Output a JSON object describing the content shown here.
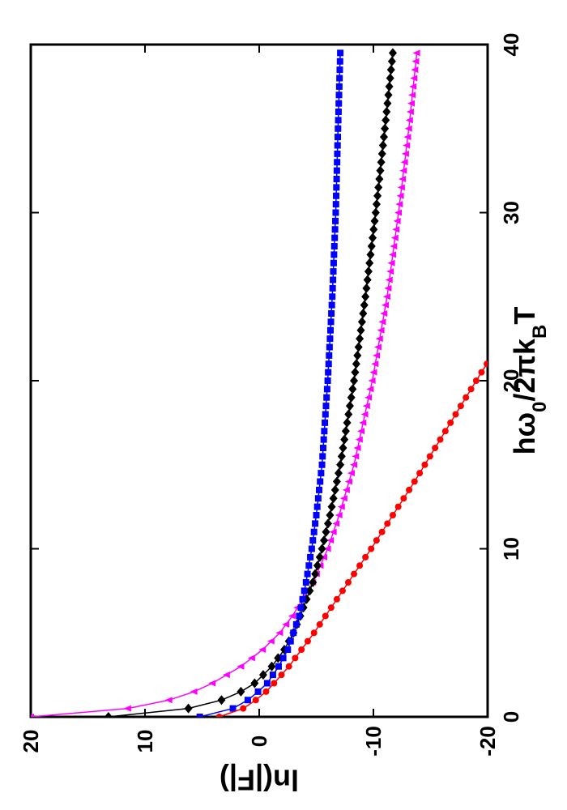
{
  "chart_data": {
    "type": "line",
    "title": "",
    "xlabel": {
      "parts": [
        {
          "text": "h",
          "style": "normal"
        },
        {
          "text": "ω",
          "style": "normal"
        },
        {
          "text": "0",
          "style": "sub"
        },
        {
          "text": "/2",
          "style": "normal"
        },
        {
          "text": "π",
          "style": "normal"
        },
        {
          "text": "k",
          "style": "normal"
        },
        {
          "text": "B",
          "style": "sub"
        },
        {
          "text": "T",
          "style": "normal"
        }
      ]
    },
    "ylabel": "ln(|F|)",
    "xlim": [
      0,
      40
    ],
    "ylim": [
      -20,
      20
    ],
    "x_ticks": [
      "0",
      "10",
      "20",
      "30",
      "40"
    ],
    "y_ticks": [
      "-20",
      "-10",
      "0",
      "10",
      "20"
    ],
    "orientation": "rotated-90-ccw",
    "grid": false,
    "legend": "none",
    "series": [
      {
        "color": "#ff00ff",
        "marker": "triangle",
        "points": [
          [
            0,
            20
          ],
          [
            0.5,
            11.5
          ],
          [
            1,
            7.9
          ],
          [
            1.5,
            5.7
          ],
          [
            2,
            4.1
          ],
          [
            3,
            1.6
          ],
          [
            4,
            -0.3
          ],
          [
            5,
            -1.8
          ],
          [
            6,
            -2.9
          ],
          [
            8,
            -4.7
          ],
          [
            10,
            -6.0
          ],
          [
            12,
            -7.0
          ],
          [
            15,
            -8.3
          ],
          [
            20,
            -9.9
          ],
          [
            25,
            -11.2
          ],
          [
            30,
            -12.2
          ],
          [
            35,
            -13.1
          ],
          [
            39.5,
            -13.8
          ]
        ]
      },
      {
        "color": "#000000",
        "marker": "diamond",
        "points": [
          [
            0,
            13.2
          ],
          [
            0.5,
            6.2
          ],
          [
            1,
            3.3
          ],
          [
            1.5,
            1.6
          ],
          [
            2,
            0.4
          ],
          [
            3,
            -1.1
          ],
          [
            4,
            -2.2
          ],
          [
            5,
            -3.0
          ],
          [
            6,
            -3.6
          ],
          [
            8,
            -4.7
          ],
          [
            10,
            -5.5
          ],
          [
            12,
            -6.2
          ],
          [
            15,
            -7.1
          ],
          [
            20,
            -8.3
          ],
          [
            25,
            -9.3
          ],
          [
            30,
            -10.2
          ],
          [
            35,
            -11.0
          ],
          [
            39.5,
            -11.7
          ]
        ]
      },
      {
        "color": "#0000ff",
        "marker": "square",
        "points": [
          [
            0,
            5.2
          ],
          [
            0.5,
            2.3
          ],
          [
            1,
            1.0
          ],
          [
            1.5,
            0.1
          ],
          [
            2,
            -0.7
          ],
          [
            3,
            -1.7
          ],
          [
            4,
            -2.5
          ],
          [
            5,
            -3.0
          ],
          [
            6,
            -3.5
          ],
          [
            7,
            -3.8
          ],
          [
            8,
            -4.1
          ],
          [
            10,
            -4.6
          ],
          [
            12,
            -5.0
          ],
          [
            15,
            -5.5
          ],
          [
            20,
            -6.0
          ],
          [
            25,
            -6.4
          ],
          [
            30,
            -6.7
          ],
          [
            35,
            -6.9
          ],
          [
            39.5,
            -7.1
          ]
        ]
      },
      {
        "color": "#ff0000",
        "marker": "circle",
        "points": [
          [
            0,
            3.5
          ],
          [
            0.5,
            1.4
          ],
          [
            1,
            0.3
          ],
          [
            1.5,
            -0.6
          ],
          [
            2,
            -1.3
          ],
          [
            3,
            -2.6
          ],
          [
            4,
            -3.7
          ],
          [
            5,
            -4.8
          ],
          [
            6,
            -5.8
          ],
          [
            8,
            -7.8
          ],
          [
            10,
            -9.8
          ],
          [
            12,
            -11.7
          ],
          [
            14,
            -13.6
          ],
          [
            16,
            -15.4
          ],
          [
            18,
            -17.2
          ],
          [
            20,
            -19.0
          ],
          [
            21.5,
            -20.4
          ]
        ]
      }
    ]
  }
}
